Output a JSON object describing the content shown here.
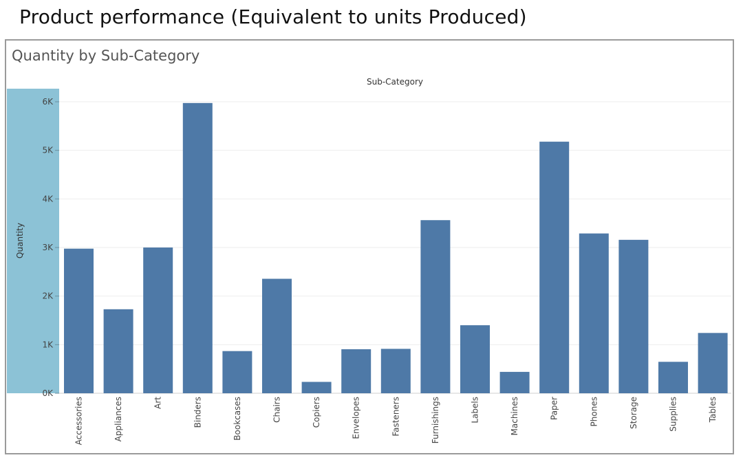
{
  "page": {
    "title": "Product performance (Equivalent to units Produced)"
  },
  "sheet": {
    "title": "Quantity by Sub-Category"
  },
  "colors": {
    "bar": "#4e79a7",
    "axis_band": "#8cc2d6",
    "gridline": "#eeeeee",
    "frame": "#9a9a9a"
  },
  "chart_data": {
    "type": "bar",
    "title": "Quantity by Sub-Category",
    "column_header": "Sub-Category",
    "xlabel": "",
    "ylabel": "Quantity",
    "ylim": [
      0,
      6000
    ],
    "yticks": [
      0,
      1000,
      2000,
      3000,
      4000,
      5000,
      6000
    ],
    "ytick_labels": [
      "0K",
      "1K",
      "2K",
      "3K",
      "4K",
      "5K",
      "6K"
    ],
    "grid": true,
    "categories": [
      "Accessories",
      "Appliances",
      "Art",
      "Binders",
      "Bookcases",
      "Chairs",
      "Copiers",
      "Envelopes",
      "Fasteners",
      "Furnishings",
      "Labels",
      "Machines",
      "Paper",
      "Phones",
      "Storage",
      "Supplies",
      "Tables"
    ],
    "values": [
      2976,
      1729,
      3000,
      5974,
      868,
      2356,
      234,
      906,
      914,
      3563,
      1400,
      440,
      5178,
      3289,
      3158,
      647,
      1241
    ]
  }
}
